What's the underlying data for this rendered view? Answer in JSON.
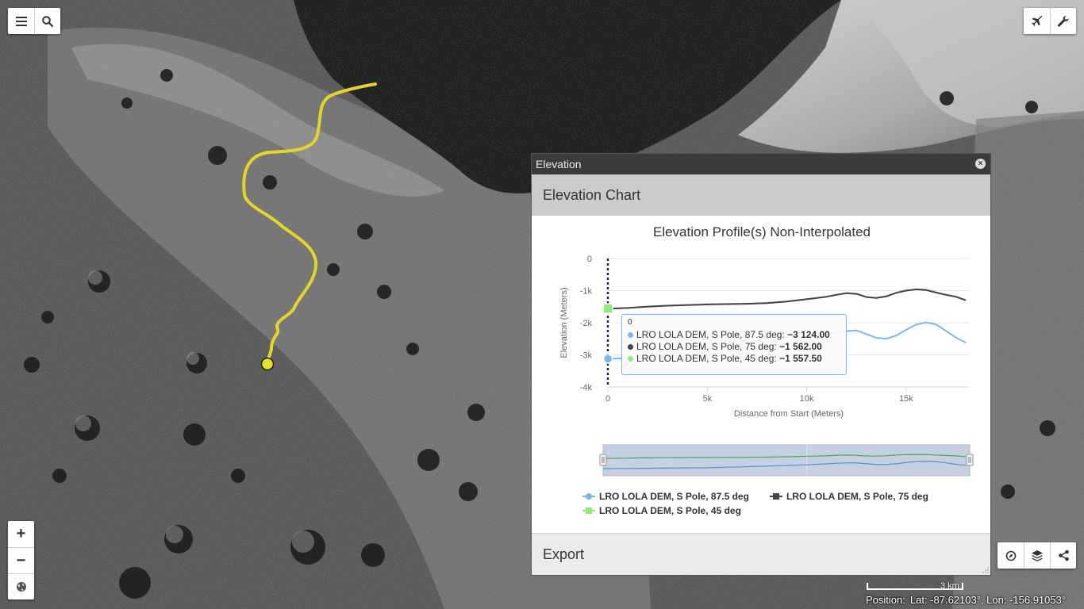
{
  "top_left_toolbar": {
    "menu_icon": "menu-icon",
    "search_icon": "search-icon"
  },
  "top_right_toolbar": {
    "flight_icon": "airplane-icon",
    "tools_icon": "wrench-icon"
  },
  "zoom_controls": {
    "zoom_in": "+",
    "zoom_out": "−",
    "globe_icon": "globe-icon"
  },
  "bottom_right_toolbar": {
    "compass_icon": "compass-icon",
    "layers_icon": "layers-icon",
    "share_icon": "share-icon"
  },
  "scale": {
    "label": "3 km"
  },
  "position": {
    "label": "Position:",
    "value": "Lat: -87.62103°, Lon: -156.91053°"
  },
  "panel": {
    "title": "Elevation",
    "chart_header": "Elevation Chart",
    "export_label": "Export",
    "colors": {
      "series1": "#7cb5ec",
      "series2": "#434348",
      "series3": "#90ed7d",
      "track": "#e6d42a"
    }
  },
  "tooltip": {
    "header": "0",
    "rows": [
      {
        "label": "LRO LOLA DEM, S Pole, 87.5 deg: ",
        "value": "−3 124.00"
      },
      {
        "label": "LRO LOLA DEM, S Pole, 75 deg: ",
        "value": "−1 562.00"
      },
      {
        "label": "LRO LOLA DEM, S Pole, 45 deg: ",
        "value": "−1 557.50"
      }
    ]
  },
  "chart_data": {
    "type": "line",
    "title": "Elevation Profile(s) Non-Interpolated",
    "xlabel": "Distance from Start (Meters)",
    "ylabel": "Elevation (Meters)",
    "xlim": [
      0,
      18200
    ],
    "ylim": [
      -4000,
      0
    ],
    "x_ticks": [
      0,
      5000,
      10000,
      15000
    ],
    "x_tick_labels": [
      "0",
      "5k",
      "10k",
      "15k"
    ],
    "y_ticks": [
      0,
      -1000,
      -2000,
      -3000,
      -4000
    ],
    "y_tick_labels": [
      "0",
      "-1k",
      "-2k",
      "-3k",
      "-4k"
    ],
    "grid": true,
    "legend_position": "bottom",
    "x": [
      0,
      1000,
      2000,
      3000,
      4000,
      5000,
      6000,
      7000,
      8000,
      9000,
      10000,
      11000,
      11500,
      12000,
      12500,
      13000,
      13500,
      14000,
      14500,
      15000,
      15500,
      16000,
      16500,
      17000,
      17500,
      18000
    ],
    "series": [
      {
        "name": "LRO LOLA DEM, S Pole, 87.5 deg",
        "values": [
          -3124,
          -3100,
          -3080,
          -3050,
          -3020,
          -3000,
          -2920,
          -2850,
          -2750,
          -2650,
          -2550,
          -2420,
          -2320,
          -2260,
          -2240,
          -2350,
          -2470,
          -2500,
          -2400,
          -2220,
          -2060,
          -1990,
          -2050,
          -2250,
          -2460,
          -2620
        ]
      },
      {
        "name": "LRO LOLA DEM, S Pole, 75 deg",
        "values": [
          -1562,
          -1540,
          -1500,
          -1470,
          -1450,
          -1430,
          -1420,
          -1410,
          -1390,
          -1340,
          -1270,
          -1190,
          -1130,
          -1080,
          -1100,
          -1200,
          -1230,
          -1180,
          -1070,
          -1000,
          -960,
          -980,
          -1060,
          -1130,
          -1190,
          -1300
        ]
      },
      {
        "name": "LRO LOLA DEM, S Pole, 45 deg",
        "values": [
          -1557.5,
          -1535,
          -1495,
          -1465,
          -1445,
          -1425,
          -1415,
          -1405,
          -1385,
          -1335,
          -1265,
          -1185,
          -1125,
          -1075,
          -1095,
          -1195,
          -1225,
          -1175,
          -1065,
          -995,
          -955,
          -975,
          -1055,
          -1125,
          -1185,
          -1295
        ]
      }
    ]
  }
}
